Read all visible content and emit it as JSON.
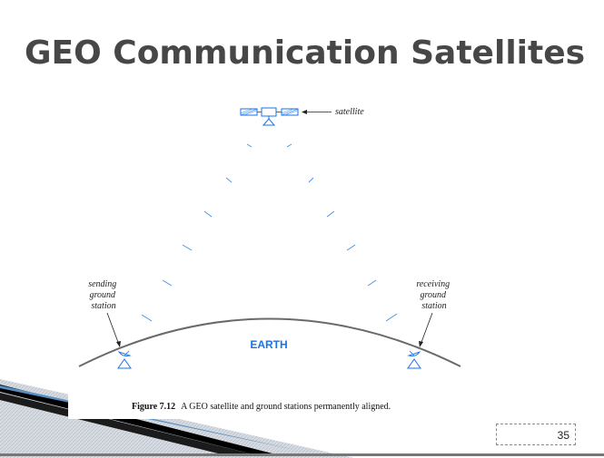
{
  "slide": {
    "title": "GEO Communication Satellites",
    "page_number": "35"
  },
  "figure": {
    "label_satellite": "satellite",
    "label_sending": [
      "sending",
      "ground",
      "station"
    ],
    "label_receiving": [
      "receiving",
      "ground",
      "station"
    ],
    "label_earth": "EARTH",
    "caption_number": "Figure 7.12",
    "caption_text": "A GEO satellite and ground stations permanently aligned."
  },
  "colors": {
    "title": "#474747",
    "diagram_blue": "#1a73e8",
    "earth_arc": "#666666"
  }
}
